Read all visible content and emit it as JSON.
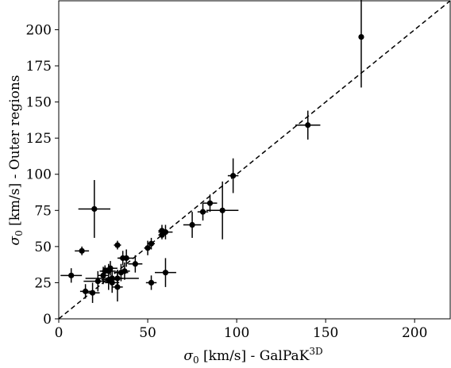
{
  "chart_data": {
    "type": "scatter",
    "title": "",
    "xlabel_symbol": "σ",
    "xlabel_sub": "0",
    "xlabel_text": " [km/s] - GalPaK",
    "xlabel_sup": "3D",
    "ylabel_symbol": "σ",
    "ylabel_sub": "0",
    "ylabel_text": " [km/s] - Outer regions",
    "xlim": [
      0,
      220
    ],
    "ylim": [
      0,
      220
    ],
    "x_ticks": [
      0,
      50,
      100,
      150,
      200
    ],
    "y_ticks": [
      0,
      25,
      50,
      75,
      100,
      125,
      150,
      175,
      200
    ],
    "one_to_one_line": true,
    "points": [
      {
        "x": 170,
        "y": 195,
        "xerr": 0,
        "yerr": 35
      },
      {
        "x": 140,
        "y": 134,
        "xerr": 7,
        "yerr": 10
      },
      {
        "x": 98,
        "y": 99,
        "xerr": 3,
        "yerr": 12
      },
      {
        "x": 92,
        "y": 75,
        "xerr": 9,
        "yerr": 20
      },
      {
        "x": 85,
        "y": 80,
        "xerr": 4,
        "yerr": 6
      },
      {
        "x": 81,
        "y": 74,
        "xerr": 3,
        "yerr": 6
      },
      {
        "x": 75,
        "y": 65,
        "xerr": 5,
        "yerr": 9
      },
      {
        "x": 60,
        "y": 60,
        "xerr": 4,
        "yerr": 5
      },
      {
        "x": 58,
        "y": 61,
        "xerr": 2,
        "yerr": 4
      },
      {
        "x": 58,
        "y": 58,
        "xerr": 2,
        "yerr": 3
      },
      {
        "x": 60,
        "y": 32,
        "xerr": 6,
        "yerr": 10
      },
      {
        "x": 52,
        "y": 52,
        "xerr": 2,
        "yerr": 4
      },
      {
        "x": 50,
        "y": 49,
        "xerr": 2,
        "yerr": 5
      },
      {
        "x": 52,
        "y": 25,
        "xerr": 3,
        "yerr": 5
      },
      {
        "x": 20,
        "y": 76,
        "xerr": 9,
        "yerr": 20
      },
      {
        "x": 13,
        "y": 47,
        "xerr": 4,
        "yerr": 3
      },
      {
        "x": 7,
        "y": 30,
        "xerr": 6,
        "yerr": 5
      },
      {
        "x": 33,
        "y": 51,
        "xerr": 2,
        "yerr": 3
      },
      {
        "x": 36,
        "y": 42,
        "xerr": 3,
        "yerr": 5
      },
      {
        "x": 43,
        "y": 38,
        "xerr": 4,
        "yerr": 6
      },
      {
        "x": 38,
        "y": 42,
        "xerr": 4,
        "yerr": 6
      },
      {
        "x": 37,
        "y": 33,
        "xerr": 3,
        "yerr": 6
      },
      {
        "x": 35,
        "y": 32,
        "xerr": 4,
        "yerr": 6
      },
      {
        "x": 33,
        "y": 28,
        "xerr": 3,
        "yerr": 6
      },
      {
        "x": 30,
        "y": 28,
        "xerr": 15,
        "yerr": 8
      },
      {
        "x": 29,
        "y": 35,
        "xerr": 4,
        "yerr": 5
      },
      {
        "x": 28,
        "y": 33,
        "xerr": 4,
        "yerr": 5
      },
      {
        "x": 26,
        "y": 33,
        "xerr": 3,
        "yerr": 4
      },
      {
        "x": 25,
        "y": 30,
        "xerr": 3,
        "yerr": 6
      },
      {
        "x": 28,
        "y": 27,
        "xerr": 4,
        "yerr": 7
      },
      {
        "x": 30,
        "y": 25,
        "xerr": 4,
        "yerr": 7
      },
      {
        "x": 33,
        "y": 22,
        "xerr": 3,
        "yerr": 10
      },
      {
        "x": 22,
        "y": 26,
        "xerr": 8,
        "yerr": 7
      },
      {
        "x": 15,
        "y": 19,
        "xerr": 3,
        "yerr": 5
      },
      {
        "x": 19,
        "y": 18,
        "xerr": 4,
        "yerr": 7
      }
    ]
  }
}
